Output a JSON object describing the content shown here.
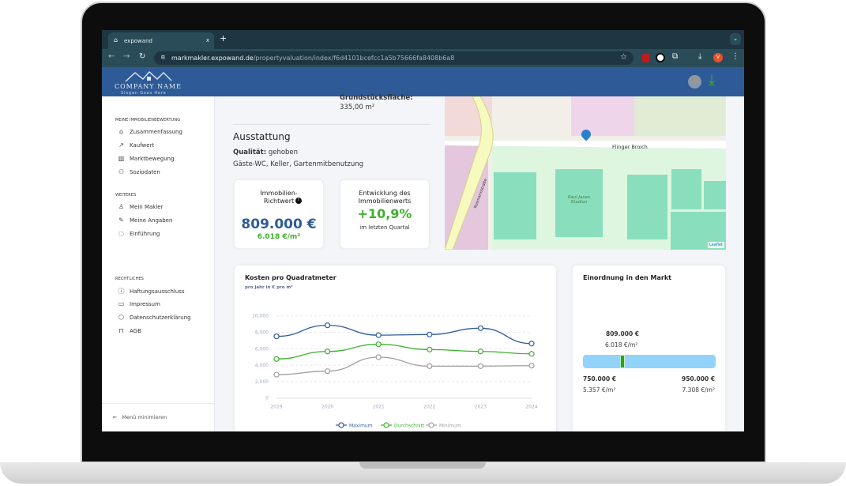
{
  "browser": {
    "tab_title": "expowand",
    "url_host": "markmakler.expowand.de",
    "url_path": "/propertyvaluation/index/f6d4101bcefcc1a5b75666fa8408b6a8",
    "new_tab": "+",
    "close_tab": "x",
    "profile_initial": "V"
  },
  "header": {
    "company_name": "COMPANY NAME",
    "slogan": "Slogan Goes Here"
  },
  "sidebar": {
    "sections": [
      {
        "title": "MEINE IMMOBILIENBEWERTUNG",
        "items": [
          {
            "label": "Zusammenfassung",
            "icon": "home-icon"
          },
          {
            "label": "Kaufwert",
            "icon": "trending-up-icon"
          },
          {
            "label": "Marktbewegung",
            "icon": "map-icon"
          },
          {
            "label": "Soziodaten",
            "icon": "users-icon"
          }
        ]
      },
      {
        "title": "WEITERES",
        "items": [
          {
            "label": "Mein Makler",
            "icon": "user-icon"
          },
          {
            "label": "Meine Angaben",
            "icon": "edit-icon"
          },
          {
            "label": "Einführung",
            "icon": "chat-icon"
          }
        ]
      },
      {
        "title": "RECHTLICHES",
        "items": [
          {
            "label": "Haftungsausschluss",
            "icon": "info-icon"
          },
          {
            "label": "Impressum",
            "icon": "archive-icon"
          },
          {
            "label": "Datenschutzerklärung",
            "icon": "shield-icon"
          },
          {
            "label": "AGB",
            "icon": "lock-icon"
          }
        ]
      }
    ],
    "minimize": "Menü minimieren"
  },
  "details": {
    "plot_label": "Grundstücksfläche:",
    "plot_value": "335,00 m²",
    "section_title": "Ausstattung",
    "quality_label": "Qualität:",
    "quality_value": "gehoben",
    "features": "Gäste-WC, Keller, Gartenmitbenutzung"
  },
  "value_card": {
    "title": "Immobilien-Richtwert",
    "price": "809.000 €",
    "per_sqm": "6.018 €/m²"
  },
  "trend_card": {
    "title": "Entwicklung des Immobilienwerts",
    "value": "+10,9%",
    "subtitle": "im letzten Quartal"
  },
  "map": {
    "street": "Flinger Broich",
    "street2": "Rosmarinstraße",
    "venue": "Paul Janes Stadion",
    "attribution": "Leaflet"
  },
  "market": {
    "title": "Einordnung in den Markt",
    "current_price": "809.000 €",
    "current_sqm": "6.018 €/m²",
    "min_price": "750.000 €",
    "min_sqm": "5.357 €/m²",
    "max_price": "950.000 €",
    "max_sqm": "7.308 €/m²",
    "position": 0.295,
    "colors": {
      "bar": "#92d3fb",
      "marker": "#1faa16"
    }
  },
  "chart_data": {
    "type": "line",
    "title": "Kosten pro Quadratmeter",
    "subtitle": "pro Jahr in € pro m²",
    "x": [
      "2019",
      "2020",
      "2021",
      "2022",
      "2023",
      "2024"
    ],
    "ylim": [
      0,
      10000
    ],
    "yticks": [
      "0",
      "2,000",
      "4,000",
      "6,000",
      "8,000",
      "10,000"
    ],
    "grid": true,
    "legend": "bottom",
    "series": [
      {
        "name": "Maximum",
        "color": "#2f5b98",
        "values": [
          7500,
          8850,
          7650,
          7730,
          8500,
          6630
        ]
      },
      {
        "name": "Durchschnitt",
        "color": "#3db12b",
        "values": [
          4750,
          5670,
          6540,
          5900,
          5670,
          5380
        ]
      },
      {
        "name": "Minimum",
        "color": "#9e9e9e",
        "values": [
          2850,
          3270,
          4970,
          3880,
          3880,
          3940
        ]
      }
    ]
  }
}
